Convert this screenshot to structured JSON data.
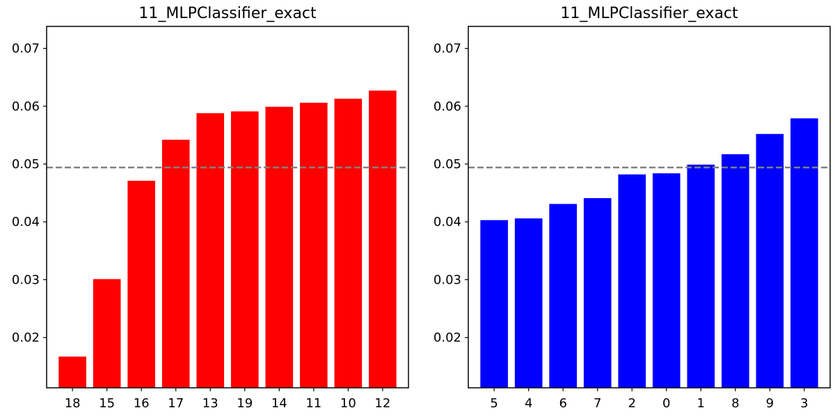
{
  "chart_data": [
    {
      "type": "bar",
      "title": "11_MLPClassifier_exact",
      "xlabel": "",
      "ylabel": "",
      "ylim": [
        0.0113,
        0.0738
      ],
      "yticks": [
        "0.02",
        "0.03",
        "0.04",
        "0.05",
        "0.06",
        "0.07"
      ],
      "grid": false,
      "bar_color": "#ff0000",
      "reference_line": {
        "value": 0.0494,
        "style": "dashed",
        "color": "#808080"
      },
      "categories": [
        "18",
        "15",
        "16",
        "17",
        "13",
        "19",
        "14",
        "11",
        "10",
        "12"
      ],
      "values": [
        0.0167,
        0.0301,
        0.0471,
        0.0542,
        0.0588,
        0.0591,
        0.0599,
        0.0606,
        0.0613,
        0.0627
      ]
    },
    {
      "type": "bar",
      "title": "11_MLPClassifier_exact",
      "xlabel": "",
      "ylabel": "",
      "ylim": [
        0.0113,
        0.0738
      ],
      "yticks": [
        "0.02",
        "0.03",
        "0.04",
        "0.05",
        "0.06",
        "0.07"
      ],
      "grid": false,
      "bar_color": "#0000ff",
      "reference_line": {
        "value": 0.0494,
        "style": "dashed",
        "color": "#808080"
      },
      "categories": [
        "5",
        "4",
        "6",
        "7",
        "2",
        "0",
        "1",
        "8",
        "9",
        "3"
      ],
      "values": [
        0.0403,
        0.0406,
        0.0431,
        0.0441,
        0.0482,
        0.0484,
        0.0499,
        0.0517,
        0.0552,
        0.0579
      ]
    }
  ]
}
